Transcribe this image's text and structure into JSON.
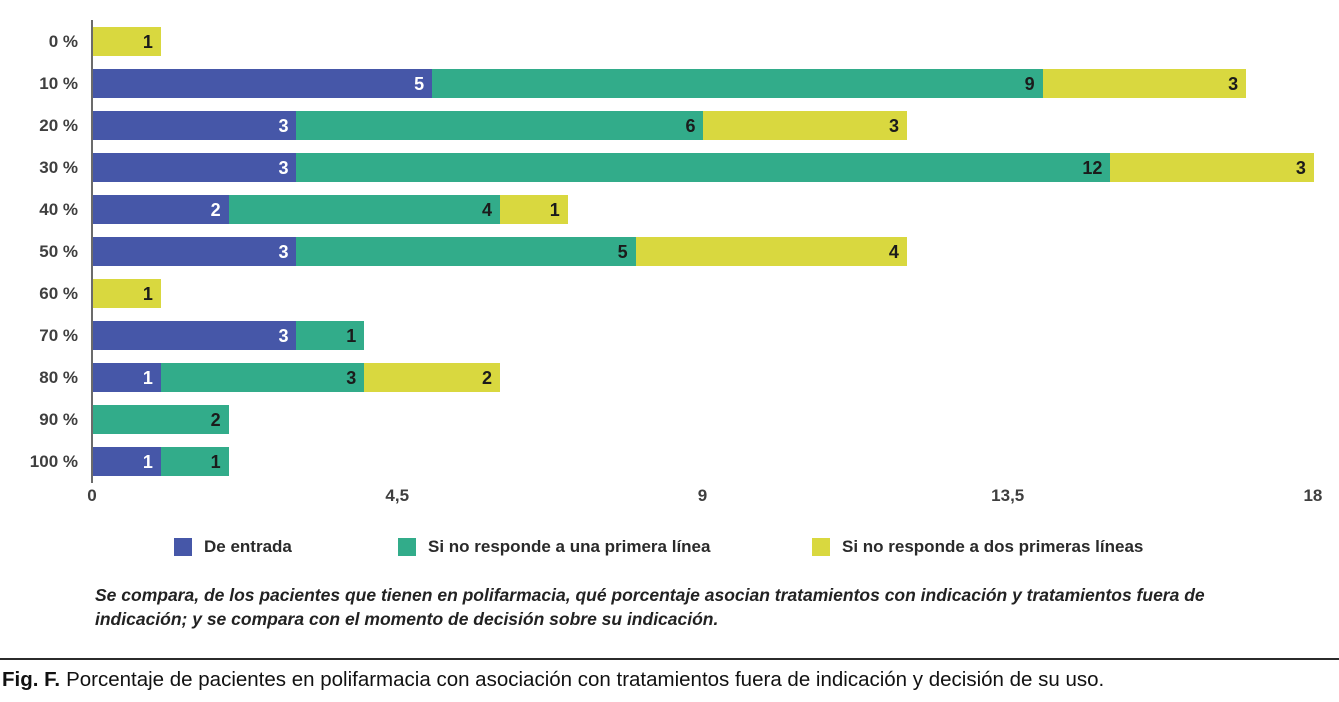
{
  "chart_data": {
    "type": "bar",
    "orientation": "horizontal",
    "stacked": true,
    "title": "",
    "xlabel": "",
    "ylabel": "",
    "xlim": [
      0,
      18
    ],
    "grid": false,
    "legend_position": "bottom",
    "categories": [
      "0 %",
      "10 %",
      "20 %",
      "30 %",
      "40 %",
      "50 %",
      "60 %",
      "70 %",
      "80 %",
      "90 %",
      "100 %"
    ],
    "series": [
      {
        "name": "De entrada",
        "color": "#4657a8",
        "label_color": "#ffffff",
        "values": [
          0,
          5,
          3,
          3,
          2,
          3,
          0,
          3,
          1,
          0,
          1
        ]
      },
      {
        "name": "Si no responde a una primera línea",
        "color": "#32ac8a",
        "label_color": "#1b1b1b",
        "values": [
          0,
          9,
          6,
          12,
          4,
          5,
          0,
          1,
          3,
          2,
          1
        ]
      },
      {
        "name": "Si no responde a dos primeras líneas",
        "color": "#d9d83f",
        "label_color": "#1b1b1b",
        "values": [
          1,
          3,
          3,
          3,
          1,
          4,
          1,
          0,
          2,
          0,
          0
        ]
      }
    ],
    "x_ticks": [
      {
        "label": "0",
        "value": 0
      },
      {
        "label": "4,5",
        "value": 4.5
      },
      {
        "label": "9",
        "value": 9
      },
      {
        "label": "13,5",
        "value": 13.5
      },
      {
        "label": "18",
        "value": 18
      }
    ]
  },
  "note": "Se compara, de los pacientes que tienen en polifarmacia, qué porcentaje asocian tratamientos con indicación y tratamientos fuera de indicación; y se compara con el momento de decisión sobre su indicación.",
  "caption": {
    "label": "Fig. F.",
    "text": "Porcentaje de pacientes en polifarmacia con asociación con tratamientos fuera de indicación y decisión de su uso."
  }
}
